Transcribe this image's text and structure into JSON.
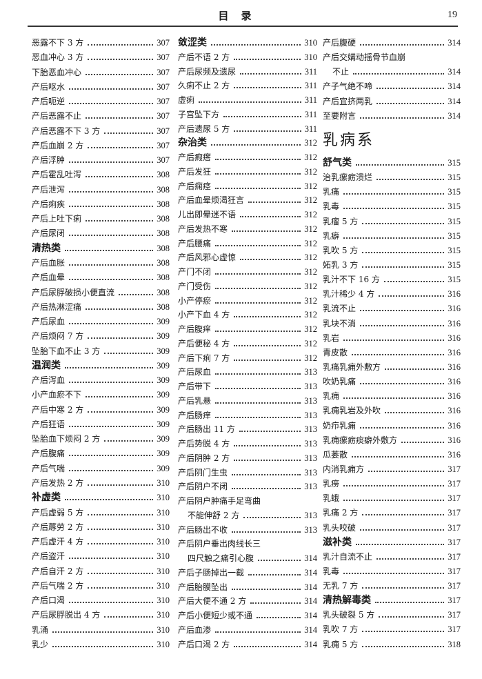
{
  "header": {
    "title": "目录",
    "page_number": "19"
  },
  "columns": [
    [
      {
        "t": "恶露不下 3 方",
        "p": "307"
      },
      {
        "t": "恶血冲心 3 方",
        "p": "307"
      },
      {
        "t": "下胎恶血冲心",
        "p": "307"
      },
      {
        "t": "产后呕水",
        "p": "307"
      },
      {
        "t": "产后呃逆",
        "p": "307"
      },
      {
        "t": "产后恶露不止",
        "p": "307"
      },
      {
        "t": "产后恶露不下 3 方",
        "p": "307"
      },
      {
        "t": "产后血崩 2 方",
        "p": "307"
      },
      {
        "t": "产后浮肿",
        "p": "307"
      },
      {
        "t": "产后霍乱吐泻",
        "p": "308"
      },
      {
        "t": "产后泄泻",
        "p": "308"
      },
      {
        "t": "产后痢疾",
        "p": "308"
      },
      {
        "t": "产后上吐下痢",
        "p": "308"
      },
      {
        "t": "产后尿闭",
        "p": "308"
      },
      {
        "t": "清热类",
        "p": "308",
        "bold": true
      },
      {
        "t": "产后血胀",
        "p": "308"
      },
      {
        "t": "产后血晕",
        "p": "308"
      },
      {
        "t": "产后尿脬破损小便直流",
        "p": "308"
      },
      {
        "t": "产后热淋涩痛",
        "p": "308"
      },
      {
        "t": "产后尿血",
        "p": "309"
      },
      {
        "t": "产后烦闷 7 方",
        "p": "309"
      },
      {
        "t": "坠胎下血不止 3 方",
        "p": "309"
      },
      {
        "t": "温润类",
        "p": "309",
        "bold": true
      },
      {
        "t": "产后泻血",
        "p": "309"
      },
      {
        "t": "小产血瘀不下",
        "p": "309"
      },
      {
        "t": "产后中寒 2 方",
        "p": "309"
      },
      {
        "t": "产后狂语",
        "p": "309"
      },
      {
        "t": "坠胎血下烦闷 2 方",
        "p": "309"
      },
      {
        "t": "产后腹痛",
        "p": "309"
      },
      {
        "t": "产后气喘",
        "p": "309"
      },
      {
        "t": "产后发热 2 方",
        "p": "310"
      },
      {
        "t": "补虚类",
        "p": "310",
        "bold": true
      },
      {
        "t": "产后虚弱 5 方",
        "p": "310"
      },
      {
        "t": "产后蓐劳 2 方",
        "p": "310"
      },
      {
        "t": "产后虚汗 4 方",
        "p": "310"
      },
      {
        "t": "产后盗汗",
        "p": "310"
      },
      {
        "t": "产后自汗 2 方",
        "p": "310"
      },
      {
        "t": "产后气喘 2 方",
        "p": "310"
      },
      {
        "t": "产后口渴",
        "p": "310"
      },
      {
        "t": "产后尿脬脱出 4 方",
        "p": "310"
      },
      {
        "t": "乳涌",
        "p": "310"
      },
      {
        "t": "乳少",
        "p": "310"
      }
    ],
    [
      {
        "t": "敛涩类",
        "p": "310",
        "bold": true
      },
      {
        "t": "产后不语 2 方",
        "p": "310"
      },
      {
        "t": "产后尿频及遗尿",
        "p": "311"
      },
      {
        "t": "久痢不止 2 方",
        "p": "311"
      },
      {
        "t": "虚痢",
        "p": "311"
      },
      {
        "t": "子宫坠下方",
        "p": "311"
      },
      {
        "t": "产后遗尿 5 方",
        "p": "311"
      },
      {
        "t": "杂治类",
        "p": "312",
        "bold": true
      },
      {
        "t": "产后瘕瘩",
        "p": "312"
      },
      {
        "t": "产后发狂",
        "p": "312"
      },
      {
        "t": "产后痫痉",
        "p": "312"
      },
      {
        "t": "产后血晕烦渴狂言",
        "p": "312"
      },
      {
        "t": "儿出即晕迷不语",
        "p": "312"
      },
      {
        "t": "产后发热不寒",
        "p": "312"
      },
      {
        "t": "产后腰痛",
        "p": "312"
      },
      {
        "t": "产后风邪心虚惊",
        "p": "312"
      },
      {
        "t": "产门不闭",
        "p": "312"
      },
      {
        "t": "产门受伤",
        "p": "312"
      },
      {
        "t": "小产停瘀",
        "p": "312"
      },
      {
        "t": "小产下血 4 方",
        "p": "312"
      },
      {
        "t": "产后腹痒",
        "p": "312"
      },
      {
        "t": "产后便秘 4 方",
        "p": "312"
      },
      {
        "t": "产后下痢 7 方",
        "p": "312"
      },
      {
        "t": "产后尿血",
        "p": "313"
      },
      {
        "t": "产后带下",
        "p": "313"
      },
      {
        "t": "产后乳悬",
        "p": "313"
      },
      {
        "t": "产后肠痒",
        "p": "313"
      },
      {
        "t": "产后肠出 11 方",
        "p": "313"
      },
      {
        "t": "产后势脱 4 方",
        "p": "313"
      },
      {
        "t": "产后阴肿 2 方",
        "p": "313"
      },
      {
        "t": "产后阴门生虫",
        "p": "313"
      },
      {
        "t": "产后阴户不闭",
        "p": "313"
      },
      {
        "t": "产后阴户肿痛手足弯曲",
        "p": ""
      },
      {
        "t": "不能伸舒 2 方",
        "p": "313",
        "indent": true
      },
      {
        "t": "产后肠出不收",
        "p": "313"
      },
      {
        "t": "产后阴户垂出肉线长三",
        "p": ""
      },
      {
        "t": "四尺触之痛引心腹",
        "p": "314",
        "indent": true
      },
      {
        "t": "产后子肠掉出一截",
        "p": "314"
      },
      {
        "t": "产后胎膜坠出",
        "p": "314"
      },
      {
        "t": "产后大便不通 2 方",
        "p": "314"
      },
      {
        "t": "产后小便短少或不通",
        "p": "314"
      },
      {
        "t": "产后血渗",
        "p": "314"
      },
      {
        "t": "产后口渴 2 方",
        "p": "314"
      }
    ],
    [
      {
        "t": "产后腹硬",
        "p": "314"
      },
      {
        "t": "产后交媾动摇骨节血崩",
        "p": ""
      },
      {
        "t": "不止",
        "p": "314",
        "indent": true
      },
      {
        "t": "产子气绝不啼",
        "p": "314"
      },
      {
        "t": "产后宜挤两乳",
        "p": "314"
      },
      {
        "t": "至要附言",
        "p": "314"
      },
      {
        "t": "乳病系",
        "section": true
      },
      {
        "t": "舒气类",
        "p": "315",
        "bold": true
      },
      {
        "t": "治乳瘰疬溃烂",
        "p": "315"
      },
      {
        "t": "乳痛",
        "p": "315"
      },
      {
        "t": "乳毒",
        "p": "315"
      },
      {
        "t": "乳瘤 5 方",
        "p": "315"
      },
      {
        "t": "乳癖",
        "p": "315"
      },
      {
        "t": "乳吹 5 方",
        "p": "315"
      },
      {
        "t": "妬乳 3 方",
        "p": "315"
      },
      {
        "t": "乳汁不下 16 方",
        "p": "315"
      },
      {
        "t": "乳汁稀少 4 方",
        "p": "316"
      },
      {
        "t": "乳流不止",
        "p": "316"
      },
      {
        "t": "乳块不消",
        "p": "316"
      },
      {
        "t": "乳岩",
        "p": "316"
      },
      {
        "t": "青皮散",
        "p": "316"
      },
      {
        "t": "乳痛乳痈外敷方",
        "p": "316"
      },
      {
        "t": "吹奶乳痛",
        "p": "316"
      },
      {
        "t": "乳痈",
        "p": "316"
      },
      {
        "t": "乳痈乳岩及外吹",
        "p": "316"
      },
      {
        "t": "奶疖乳痈",
        "p": "316"
      },
      {
        "t": "乳痈瘰疬痰癖外敷方",
        "p": "316"
      },
      {
        "t": "瓜蒌散",
        "p": "316"
      },
      {
        "t": "内消乳痈方",
        "p": "317"
      },
      {
        "t": "乳痨",
        "p": "317"
      },
      {
        "t": "乳蛾",
        "p": "317"
      },
      {
        "t": "乳痛 2 方",
        "p": "317"
      },
      {
        "t": "乳头咬破",
        "p": "317"
      },
      {
        "t": "滋补类",
        "p": "317",
        "bold": true
      },
      {
        "t": "乳汁自流不止",
        "p": "317"
      },
      {
        "t": "乳毒",
        "p": "317"
      },
      {
        "t": "无乳 7 方",
        "p": "317"
      },
      {
        "t": "清热解毒类",
        "p": "317",
        "bold": true
      },
      {
        "t": "乳头破裂 5 方",
        "p": "317"
      },
      {
        "t": "乳吹 7 方",
        "p": "317"
      },
      {
        "t": "乳痈 5 方",
        "p": "318"
      }
    ]
  ]
}
